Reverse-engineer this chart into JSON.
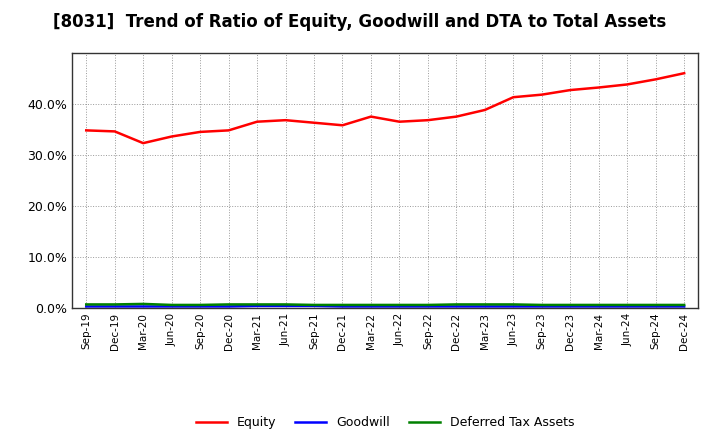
{
  "title": "[8031]  Trend of Ratio of Equity, Goodwill and DTA to Total Assets",
  "x_labels": [
    "Sep-19",
    "Dec-19",
    "Mar-20",
    "Jun-20",
    "Sep-20",
    "Dec-20",
    "Mar-21",
    "Jun-21",
    "Sep-21",
    "Dec-21",
    "Mar-22",
    "Jun-22",
    "Sep-22",
    "Dec-22",
    "Mar-23",
    "Jun-23",
    "Sep-23",
    "Dec-23",
    "Mar-24",
    "Jun-24",
    "Sep-24",
    "Dec-24"
  ],
  "equity": [
    0.348,
    0.346,
    0.323,
    0.336,
    0.345,
    0.348,
    0.365,
    0.368,
    0.363,
    0.358,
    0.375,
    0.365,
    0.368,
    0.375,
    0.388,
    0.413,
    0.418,
    0.427,
    0.432,
    0.438,
    0.448,
    0.46
  ],
  "goodwill": [
    0.003,
    0.003,
    0.003,
    0.003,
    0.003,
    0.003,
    0.004,
    0.004,
    0.004,
    0.003,
    0.003,
    0.003,
    0.003,
    0.003,
    0.003,
    0.003,
    0.003,
    0.003,
    0.003,
    0.003,
    0.003,
    0.003
  ],
  "dta": [
    0.007,
    0.007,
    0.008,
    0.006,
    0.006,
    0.007,
    0.007,
    0.007,
    0.006,
    0.006,
    0.006,
    0.006,
    0.006,
    0.007,
    0.007,
    0.007,
    0.006,
    0.006,
    0.006,
    0.006,
    0.006,
    0.006
  ],
  "equity_color": "#FF0000",
  "goodwill_color": "#0000FF",
  "dta_color": "#008000",
  "ylim": [
    0.0,
    0.5
  ],
  "yticks": [
    0.0,
    0.1,
    0.2,
    0.3,
    0.4
  ],
  "background_color": "#FFFFFF",
  "plot_bg_color": "#FFFFFF",
  "grid_color": "#999999",
  "title_fontsize": 12,
  "legend_labels": [
    "Equity",
    "Goodwill",
    "Deferred Tax Assets"
  ]
}
